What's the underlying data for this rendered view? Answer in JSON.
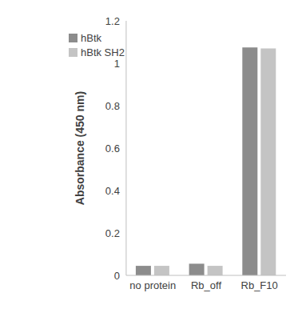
{
  "chart_data": {
    "type": "bar",
    "y_label": "Absorbance (450 nm)",
    "categories": [
      "no protein",
      "Rb_off",
      "Rb_F10"
    ],
    "series": [
      {
        "name": "hBtk",
        "color": "#8c8c8c",
        "values": [
          0.045,
          0.055,
          1.075
        ]
      },
      {
        "name": "hBtk SH2",
        "color": "#c4c4c4",
        "values": [
          0.045,
          0.045,
          1.07
        ]
      }
    ],
    "ylim": [
      0,
      1.2
    ],
    "yticks": [
      0,
      0.2,
      0.4,
      0.6,
      0.8,
      1,
      1.2
    ],
    "grid": false,
    "legend": "upper left"
  }
}
